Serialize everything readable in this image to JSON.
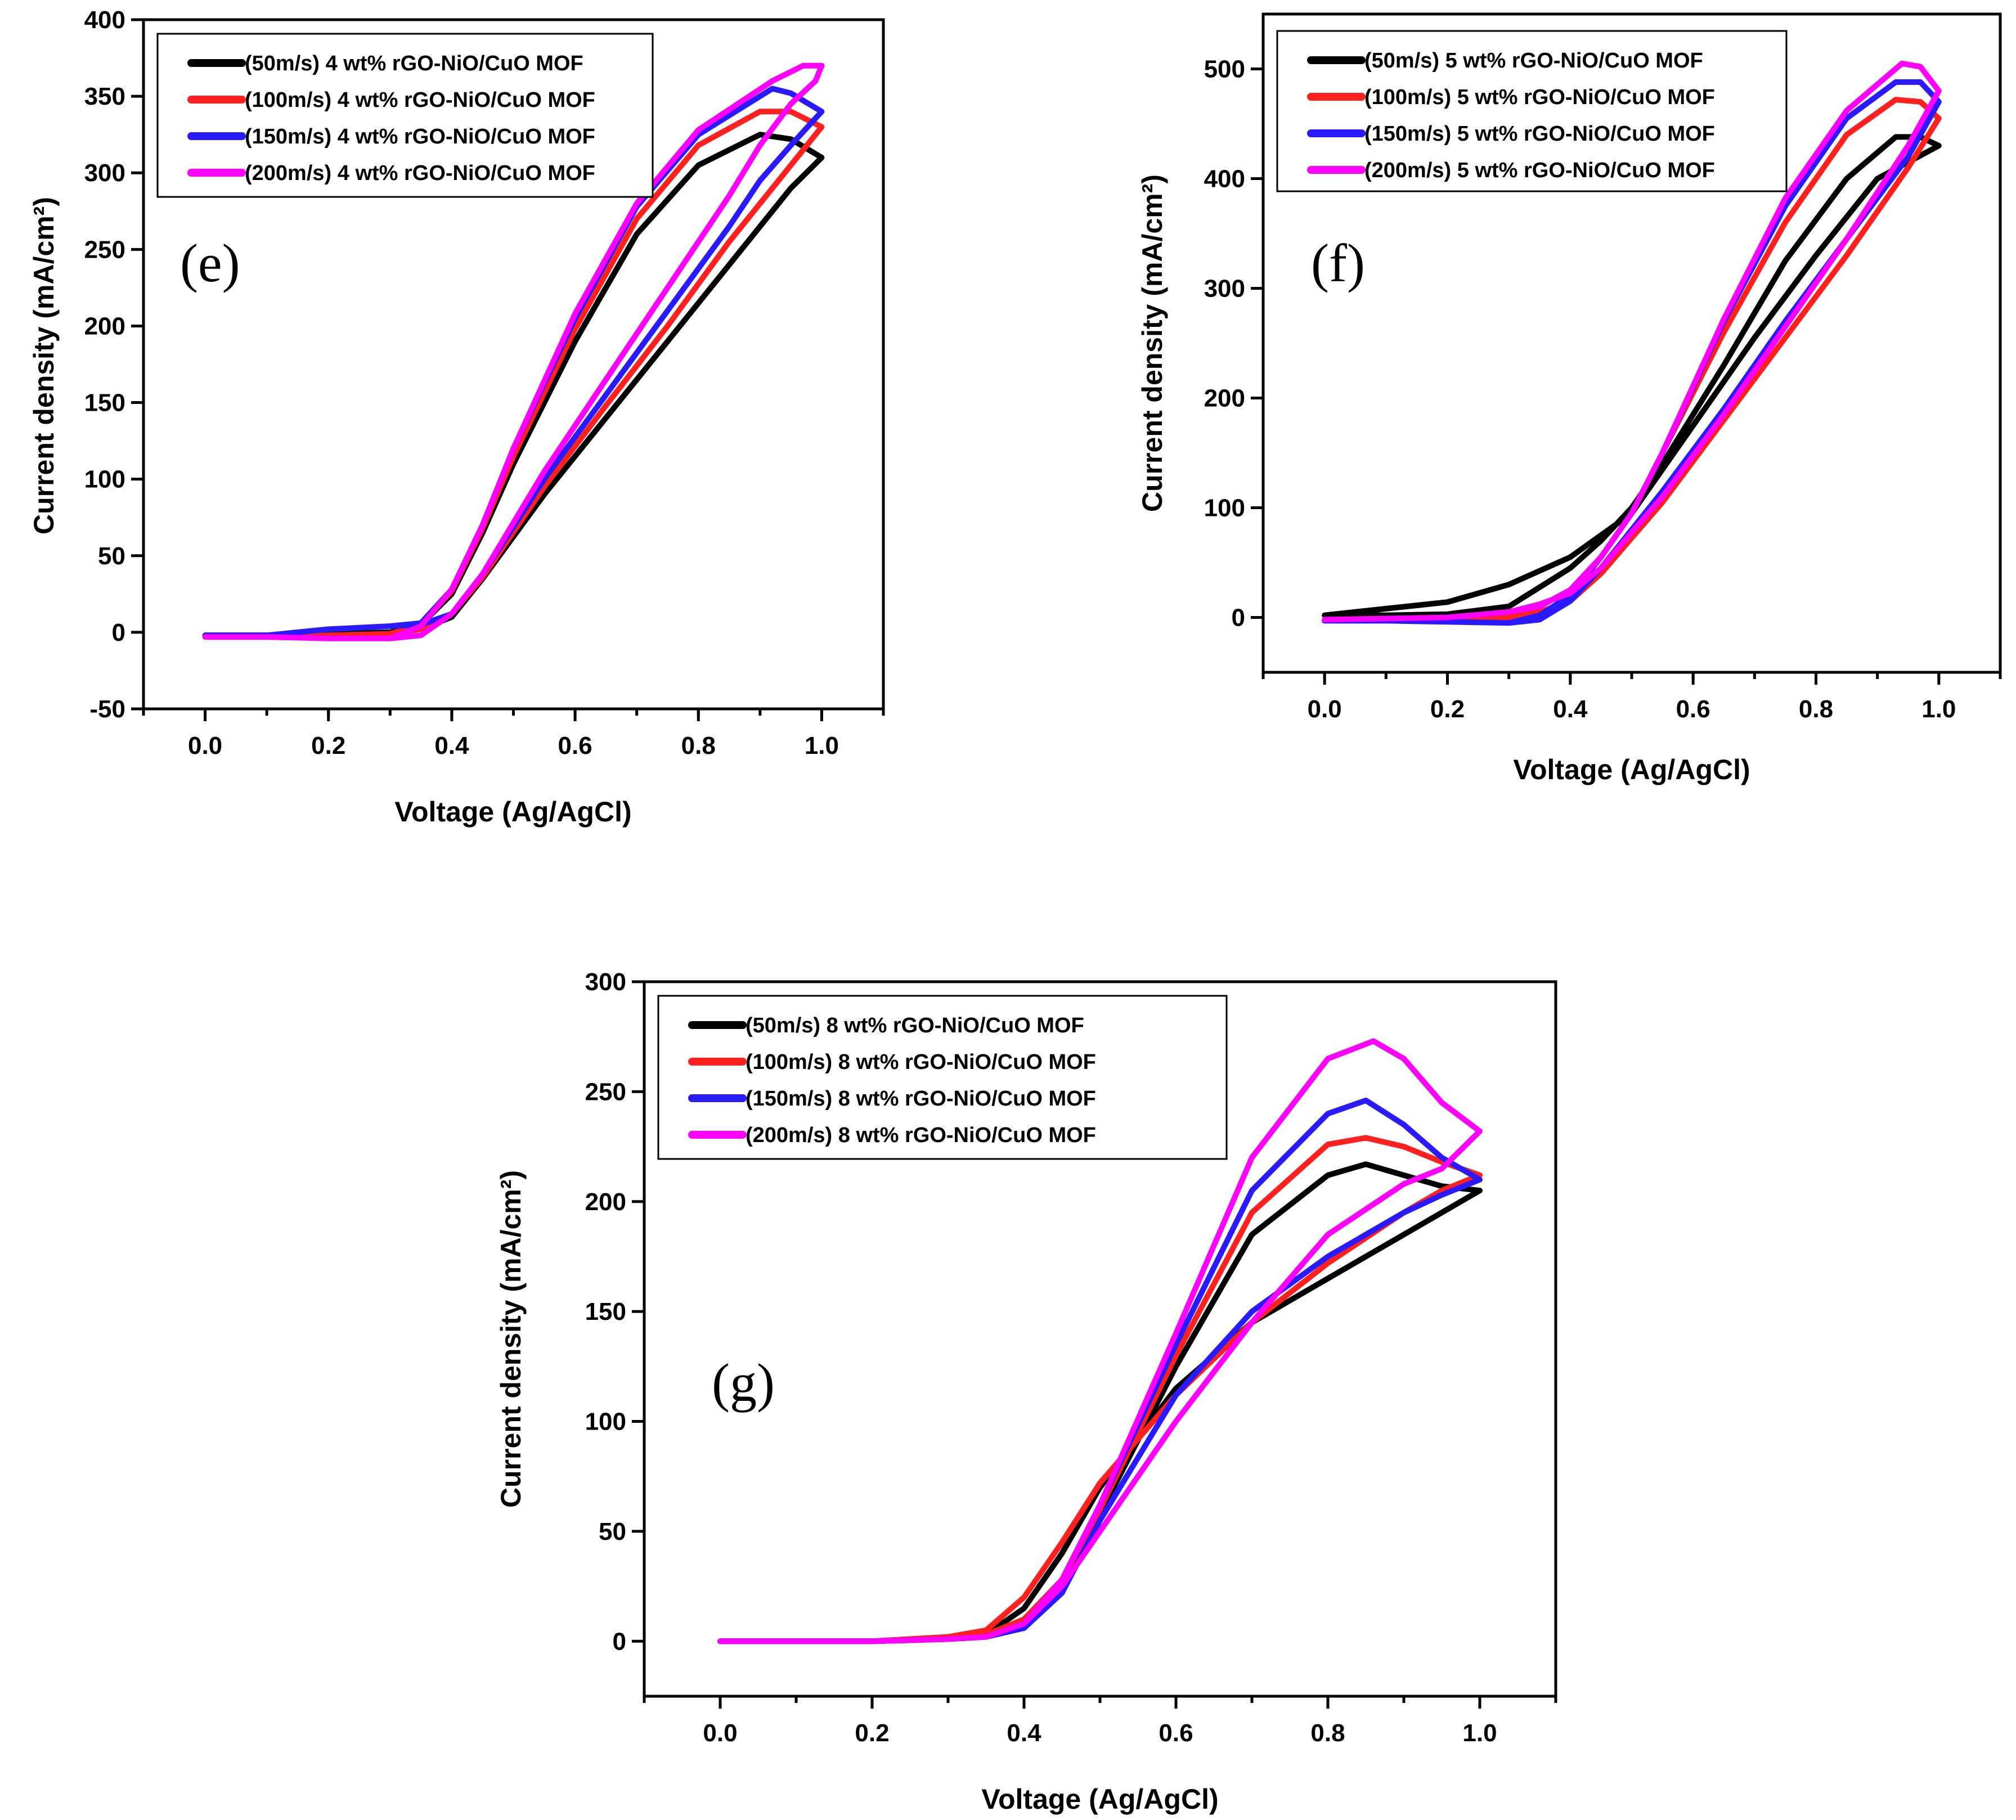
{
  "chart_data": [
    {
      "type": "line",
      "panel_label": "(e)",
      "xlabel": "Voltage (Ag/AgCl)",
      "ylabel": "Current density (mA/cm²)",
      "xlim": [
        -0.1,
        1.1
      ],
      "ylim": [
        -50,
        400
      ],
      "xticks": [
        "0.0",
        "0.2",
        "0.4",
        "0.6",
        "0.8",
        "1.0"
      ],
      "yticks": [
        "-50",
        "0",
        "50",
        "100",
        "150",
        "200",
        "250",
        "300",
        "350",
        "400"
      ],
      "legend_position": "top-left",
      "series": [
        {
          "name": "(50m/s)  4 wt% rGO-NiO/CuO MOF",
          "color": "#000000",
          "x": [
            0.0,
            0.1,
            0.2,
            0.3,
            0.35,
            0.4,
            0.45,
            0.55,
            0.65,
            0.75,
            0.85,
            0.9,
            0.95,
            1.0,
            1.0,
            0.95,
            0.9,
            0.8,
            0.7,
            0.6,
            0.5,
            0.45,
            0.4,
            0.35,
            0.3,
            0.2,
            0.1,
            0.0
          ],
          "y": [
            -2,
            -2,
            -1,
            0,
            2,
            10,
            35,
            90,
            140,
            190,
            240,
            265,
            290,
            310,
            310,
            322,
            325,
            305,
            260,
            190,
            110,
            65,
            25,
            5,
            0,
            -1,
            -2,
            -2
          ]
        },
        {
          "name": "(100m/s) 4 wt% rGO-NiO/CuO MOF",
          "color": "#ff2020",
          "x": [
            0.0,
            0.1,
            0.2,
            0.3,
            0.35,
            0.4,
            0.45,
            0.55,
            0.65,
            0.75,
            0.85,
            0.9,
            0.95,
            1.0,
            1.0,
            0.95,
            0.9,
            0.8,
            0.7,
            0.6,
            0.5,
            0.45,
            0.4,
            0.35,
            0.3,
            0.2,
            0.1,
            0.0
          ],
          "y": [
            -3,
            -3,
            -2,
            -1,
            2,
            12,
            36,
            95,
            148,
            200,
            255,
            280,
            305,
            330,
            330,
            340,
            340,
            318,
            270,
            198,
            115,
            68,
            27,
            5,
            -1,
            -2,
            -3,
            -3
          ]
        },
        {
          "name": "(150m/s) 4 wt% rGO-NiO/CuO MOF",
          "color": "#2a1aff",
          "x": [
            0.0,
            0.1,
            0.2,
            0.3,
            0.35,
            0.4,
            0.45,
            0.55,
            0.65,
            0.75,
            0.85,
            0.9,
            0.95,
            1.0,
            1.0,
            0.95,
            0.92,
            0.8,
            0.7,
            0.6,
            0.5,
            0.45,
            0.4,
            0.35,
            0.3,
            0.2,
            0.1,
            0.0
          ],
          "y": [
            -2,
            -2,
            2,
            4,
            5,
            12,
            38,
            100,
            155,
            210,
            265,
            295,
            318,
            340,
            340,
            352,
            355,
            325,
            278,
            205,
            120,
            70,
            28,
            6,
            4,
            2,
            -2,
            -2
          ]
        },
        {
          "name": "(200m/s) 4 wt% rGO-NiO/CuO MOF",
          "color": "#ff00ff",
          "x": [
            0.0,
            0.1,
            0.2,
            0.3,
            0.35,
            0.4,
            0.45,
            0.55,
            0.65,
            0.75,
            0.85,
            0.9,
            0.95,
            0.99,
            1.0,
            0.97,
            0.92,
            0.8,
            0.7,
            0.6,
            0.5,
            0.45,
            0.4,
            0.35,
            0.3,
            0.2,
            0.1,
            0.0
          ],
          "y": [
            -3,
            -3,
            -4,
            -4,
            -2,
            12,
            38,
            105,
            165,
            225,
            285,
            318,
            345,
            360,
            370,
            370,
            360,
            328,
            280,
            208,
            120,
            70,
            28,
            4,
            -4,
            -4,
            -3,
            -3
          ]
        }
      ]
    },
    {
      "type": "line",
      "panel_label": "(f)",
      "xlabel": "Voltage (Ag/AgCl)",
      "ylabel": "Current density (mA/cm²)",
      "xlim": [
        -0.1,
        1.1
      ],
      "ylim": [
        -50,
        550
      ],
      "xticks": [
        "0.0",
        "0.2",
        "0.4",
        "0.6",
        "0.8",
        "1.0"
      ],
      "yticks": [
        "0",
        "100",
        "200",
        "300",
        "400",
        "500"
      ],
      "legend_position": "top-left",
      "series": [
        {
          "name": "(50m/s)  5 wt% rGO-NiO/CuO MOF",
          "color": "#000000",
          "x": [
            0.0,
            0.1,
            0.2,
            0.3,
            0.4,
            0.5,
            0.6,
            0.7,
            0.8,
            0.9,
            1.0,
            1.0,
            0.97,
            0.93,
            0.85,
            0.75,
            0.65,
            0.55,
            0.5,
            0.45,
            0.4,
            0.3,
            0.2,
            0.1,
            0.0
          ],
          "y": [
            2,
            8,
            14,
            30,
            55,
            95,
            175,
            255,
            330,
            400,
            430,
            430,
            438,
            438,
            400,
            325,
            230,
            140,
            100,
            70,
            45,
            10,
            3,
            2,
            2
          ]
        },
        {
          "name": "(100m/s) 5 wt% rGO-NiO/CuO MOF",
          "color": "#ff2020",
          "x": [
            0.0,
            0.1,
            0.2,
            0.3,
            0.35,
            0.4,
            0.45,
            0.55,
            0.65,
            0.75,
            0.85,
            0.95,
            1.0,
            1.0,
            0.97,
            0.93,
            0.85,
            0.75,
            0.65,
            0.55,
            0.5,
            0.45,
            0.4,
            0.35,
            0.3,
            0.2,
            0.1,
            0.0
          ],
          "y": [
            -3,
            -3,
            -2,
            0,
            5,
            15,
            40,
            105,
            180,
            255,
            330,
            410,
            455,
            455,
            470,
            472,
            440,
            360,
            260,
            150,
            95,
            55,
            25,
            10,
            2,
            -2,
            -3,
            -3
          ]
        },
        {
          "name": "(150m/s) 5 wt% rGO-NiO/CuO MOF",
          "color": "#2a1aff",
          "x": [
            0.0,
            0.1,
            0.2,
            0.3,
            0.35,
            0.4,
            0.45,
            0.55,
            0.65,
            0.75,
            0.85,
            0.95,
            1.0,
            1.0,
            0.97,
            0.93,
            0.85,
            0.75,
            0.65,
            0.55,
            0.5,
            0.45,
            0.4,
            0.35,
            0.3,
            0.2,
            0.1,
            0.0
          ],
          "y": [
            -3,
            -3,
            -4,
            -5,
            -2,
            15,
            45,
            115,
            190,
            270,
            345,
            420,
            470,
            470,
            488,
            488,
            455,
            375,
            270,
            150,
            95,
            55,
            20,
            2,
            -5,
            -4,
            -3,
            -3
          ]
        },
        {
          "name": "(200m/s) 5 wt% rGO-NiO/CuO MOF",
          "color": "#ff00ff",
          "x": [
            0.0,
            0.1,
            0.2,
            0.3,
            0.35,
            0.4,
            0.45,
            0.55,
            0.65,
            0.75,
            0.85,
            0.95,
            1.0,
            1.0,
            0.97,
            0.94,
            0.85,
            0.75,
            0.65,
            0.55,
            0.5,
            0.45,
            0.4,
            0.35,
            0.3,
            0.2,
            0.1,
            0.0
          ],
          "y": [
            -2,
            -1,
            0,
            5,
            12,
            22,
            45,
            110,
            185,
            265,
            345,
            430,
            480,
            480,
            502,
            505,
            462,
            382,
            272,
            150,
            95,
            55,
            25,
            10,
            5,
            0,
            -1,
            -2
          ]
        }
      ]
    },
    {
      "type": "line",
      "panel_label": "(g)",
      "xlabel": "Voltage (Ag/AgCl)",
      "ylabel": "Current density (mA/cm²)",
      "xlim": [
        -0.1,
        1.1
      ],
      "ylim": [
        -25,
        300
      ],
      "xticks": [
        "0.0",
        "0.2",
        "0.4",
        "0.6",
        "0.8",
        "1.0"
      ],
      "yticks": [
        "0",
        "50",
        "100",
        "150",
        "200",
        "250",
        "300"
      ],
      "legend_position": "top-left",
      "series": [
        {
          "name": "(50m/s)  8 wt% rGO-NiO/CuO MOF",
          "color": "#000000",
          "x": [
            0.0,
            0.1,
            0.2,
            0.3,
            0.35,
            0.4,
            0.45,
            0.5,
            0.6,
            0.7,
            0.8,
            0.9,
            0.95,
            1.0,
            1.0,
            0.95,
            0.9,
            0.85,
            0.8,
            0.7,
            0.6,
            0.5,
            0.45,
            0.4,
            0.35,
            0.3,
            0.2,
            0.1,
            0.0
          ],
          "y": [
            0,
            0,
            0,
            1,
            3,
            15,
            40,
            70,
            115,
            145,
            165,
            185,
            195,
            205,
            205,
            207,
            212,
            217,
            212,
            185,
            125,
            58,
            25,
            8,
            2,
            1,
            0,
            0,
            0
          ]
        },
        {
          "name": "(100m/s) 8 wt% rGO-NiO/CuO MOF",
          "color": "#ff2020",
          "x": [
            0.0,
            0.1,
            0.2,
            0.3,
            0.35,
            0.4,
            0.45,
            0.5,
            0.6,
            0.7,
            0.8,
            0.9,
            0.95,
            1.0,
            1.0,
            0.95,
            0.9,
            0.85,
            0.8,
            0.7,
            0.6,
            0.5,
            0.45,
            0.4,
            0.35,
            0.3,
            0.2,
            0.1,
            0.0
          ],
          "y": [
            0,
            0,
            0,
            2,
            5,
            20,
            45,
            72,
            112,
            145,
            172,
            195,
            205,
            212,
            212,
            218,
            225,
            229,
            226,
            195,
            130,
            60,
            28,
            10,
            3,
            1,
            0,
            0,
            0
          ]
        },
        {
          "name": "(150m/s) 8 wt% rGO-NiO/CuO MOF",
          "color": "#2a1aff",
          "x": [
            0.0,
            0.1,
            0.2,
            0.3,
            0.35,
            0.4,
            0.45,
            0.5,
            0.6,
            0.7,
            0.8,
            0.9,
            0.95,
            1.0,
            1.0,
            0.95,
            0.9,
            0.85,
            0.8,
            0.7,
            0.6,
            0.5,
            0.45,
            0.4,
            0.35,
            0.3,
            0.2,
            0.1,
            0.0
          ],
          "y": [
            0,
            0,
            0,
            1,
            2,
            6,
            22,
            55,
            112,
            150,
            175,
            195,
            203,
            210,
            210,
            220,
            235,
            246,
            240,
            205,
            135,
            62,
            28,
            8,
            2,
            1,
            0,
            0,
            0
          ]
        },
        {
          "name": "(200m/s) 8 wt% rGO-NiO/CuO MOF",
          "color": "#ff00ff",
          "x": [
            0.0,
            0.1,
            0.2,
            0.3,
            0.35,
            0.4,
            0.45,
            0.5,
            0.6,
            0.7,
            0.8,
            0.9,
            0.95,
            1.0,
            1.0,
            0.95,
            0.9,
            0.86,
            0.8,
            0.7,
            0.6,
            0.5,
            0.45,
            0.4,
            0.35,
            0.3,
            0.2,
            0.1,
            0.0
          ],
          "y": [
            0,
            0,
            0,
            1,
            2,
            8,
            25,
            50,
            100,
            145,
            185,
            208,
            215,
            232,
            232,
            245,
            265,
            273,
            265,
            220,
            140,
            62,
            28,
            8,
            2,
            1,
            0,
            0,
            0
          ]
        }
      ]
    }
  ]
}
